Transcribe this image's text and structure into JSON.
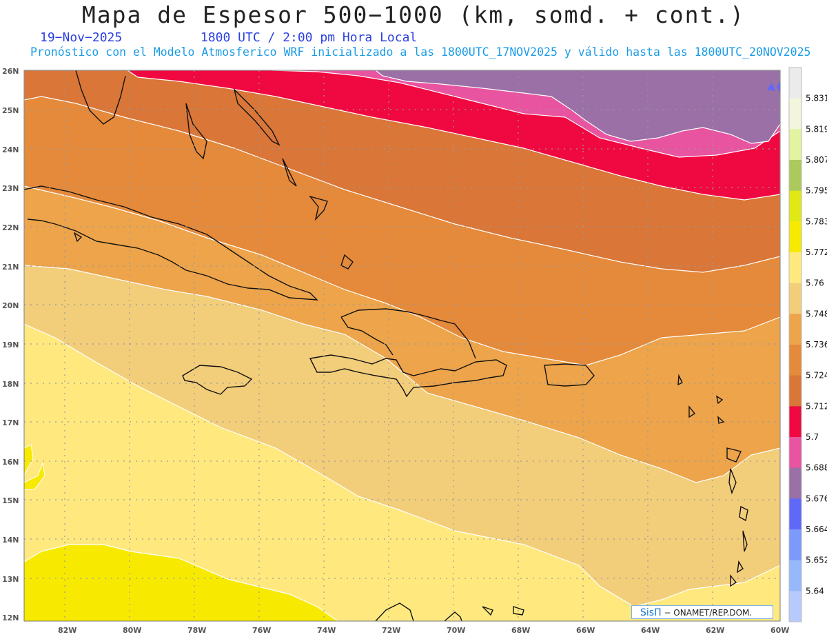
{
  "header": {
    "title": "Mapa de Espesor 500−1000 (km, somd. + cont.)",
    "date": "19−Nov−2025",
    "hour": "1800 UTC / 2:00 pm Hora Local",
    "subtitle": "Pronóstico con el Modelo Atmosferico WRF inicializado a las 1800UTC_17NOV2025 y válido hasta las  1800UTC_20NOV2025"
  },
  "axes": {
    "lat_labels": [
      "26N",
      "25N",
      "24N",
      "23N",
      "22N",
      "21N",
      "20N",
      "19N",
      "18N",
      "17N",
      "16N",
      "15N",
      "14N",
      "13N",
      "12N"
    ],
    "lon_labels": [
      "82W",
      "80W",
      "78W",
      "76W",
      "74W",
      "72W",
      "70W",
      "68W",
      "66W",
      "64W",
      "62W",
      "60W"
    ],
    "lat_range": [
      12,
      26
    ],
    "lon_range": [
      -83.2,
      -60
    ],
    "grid": true
  },
  "legend": {
    "values": [
      "5.831",
      "5.819",
      "5.807",
      "5.795",
      "5.783",
      "5.772",
      "5.76",
      "5.748",
      "5.736",
      "5.724",
      "5.712",
      "5.7",
      "5.688",
      "5.676",
      "5.664",
      "5.652",
      "5.64"
    ],
    "colors": [
      "#ebebeb",
      "#f3f6dc",
      "#e3f4a0",
      "#acc95c",
      "#e0e816",
      "#f7ea00",
      "#ffe97f",
      "#f2cd7a",
      "#eda44a",
      "#e5893a",
      "#d97638",
      "#f00840",
      "#e854a0",
      "#9a70a6",
      "#6068f8",
      "#7c9afc",
      "#98b8fc",
      "#b8cafc"
    ]
  },
  "chart_data": {
    "type": "contour-map",
    "variable": "Espesor 500−1000",
    "lat_range": [
      12,
      26
    ],
    "lon_range": [
      -83.2,
      -60
    ],
    "levels": [
      5.64,
      5.652,
      5.664,
      5.676,
      5.688,
      5.7,
      5.712,
      5.724,
      5.736,
      5.748,
      5.76,
      5.772,
      5.783,
      5.795,
      5.807,
      5.819,
      5.831
    ]
  },
  "credit": {
    "brand": "SisΠ",
    "text": "− ONAMET/REP.DOM."
  }
}
